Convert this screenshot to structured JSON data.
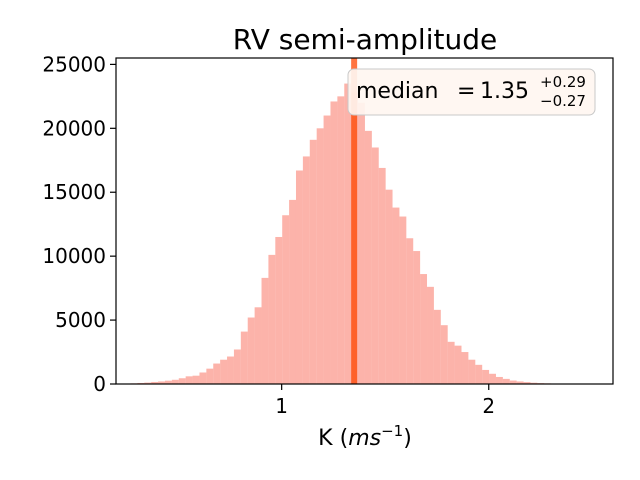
{
  "chart_data": {
    "type": "bar",
    "title": "RV semi-amplitude",
    "xlabel": {
      "main": "K (",
      "italic": "ms",
      "sup": "−1",
      "close": ")"
    },
    "ylabel": "",
    "xlim": [
      0.2,
      2.6
    ],
    "ylim": [
      0,
      25500
    ],
    "xticks": [
      1,
      2
    ],
    "xtick_labels": [
      "1",
      "2"
    ],
    "yticks": [
      0,
      5000,
      10000,
      15000,
      20000,
      25000
    ],
    "ytick_labels": [
      "0",
      "5000",
      "10000",
      "15000",
      "20000",
      "25000"
    ],
    "grid": false,
    "bar_color": "#fa8072",
    "bar_alpha": 0.6,
    "bin_start": 0.27,
    "bin_width": 0.0333,
    "values": [
      50,
      80,
      110,
      160,
      200,
      260,
      330,
      450,
      600,
      650,
      900,
      1200,
      1600,
      1900,
      2150,
      2700,
      4100,
      5200,
      6000,
      8300,
      10100,
      11500,
      13200,
      14400,
      16700,
      17800,
      19100,
      20000,
      21000,
      22100,
      22500,
      23500,
      22800,
      22000,
      19800,
      18500,
      16900,
      15200,
      13800,
      13100,
      11400,
      10400,
      8600,
      7600,
      5800,
      4600,
      3300,
      3000,
      2500,
      1900,
      1500,
      1100,
      800,
      550,
      400,
      270,
      200,
      150,
      100,
      70,
      50
    ],
    "median_line": {
      "x": 1.35,
      "color": "#ff4500"
    },
    "legend": {
      "placement": "top-right",
      "label": "median",
      "equals": "=",
      "value": "1.35",
      "plus": "+0.29",
      "minus": "−0.27"
    }
  }
}
